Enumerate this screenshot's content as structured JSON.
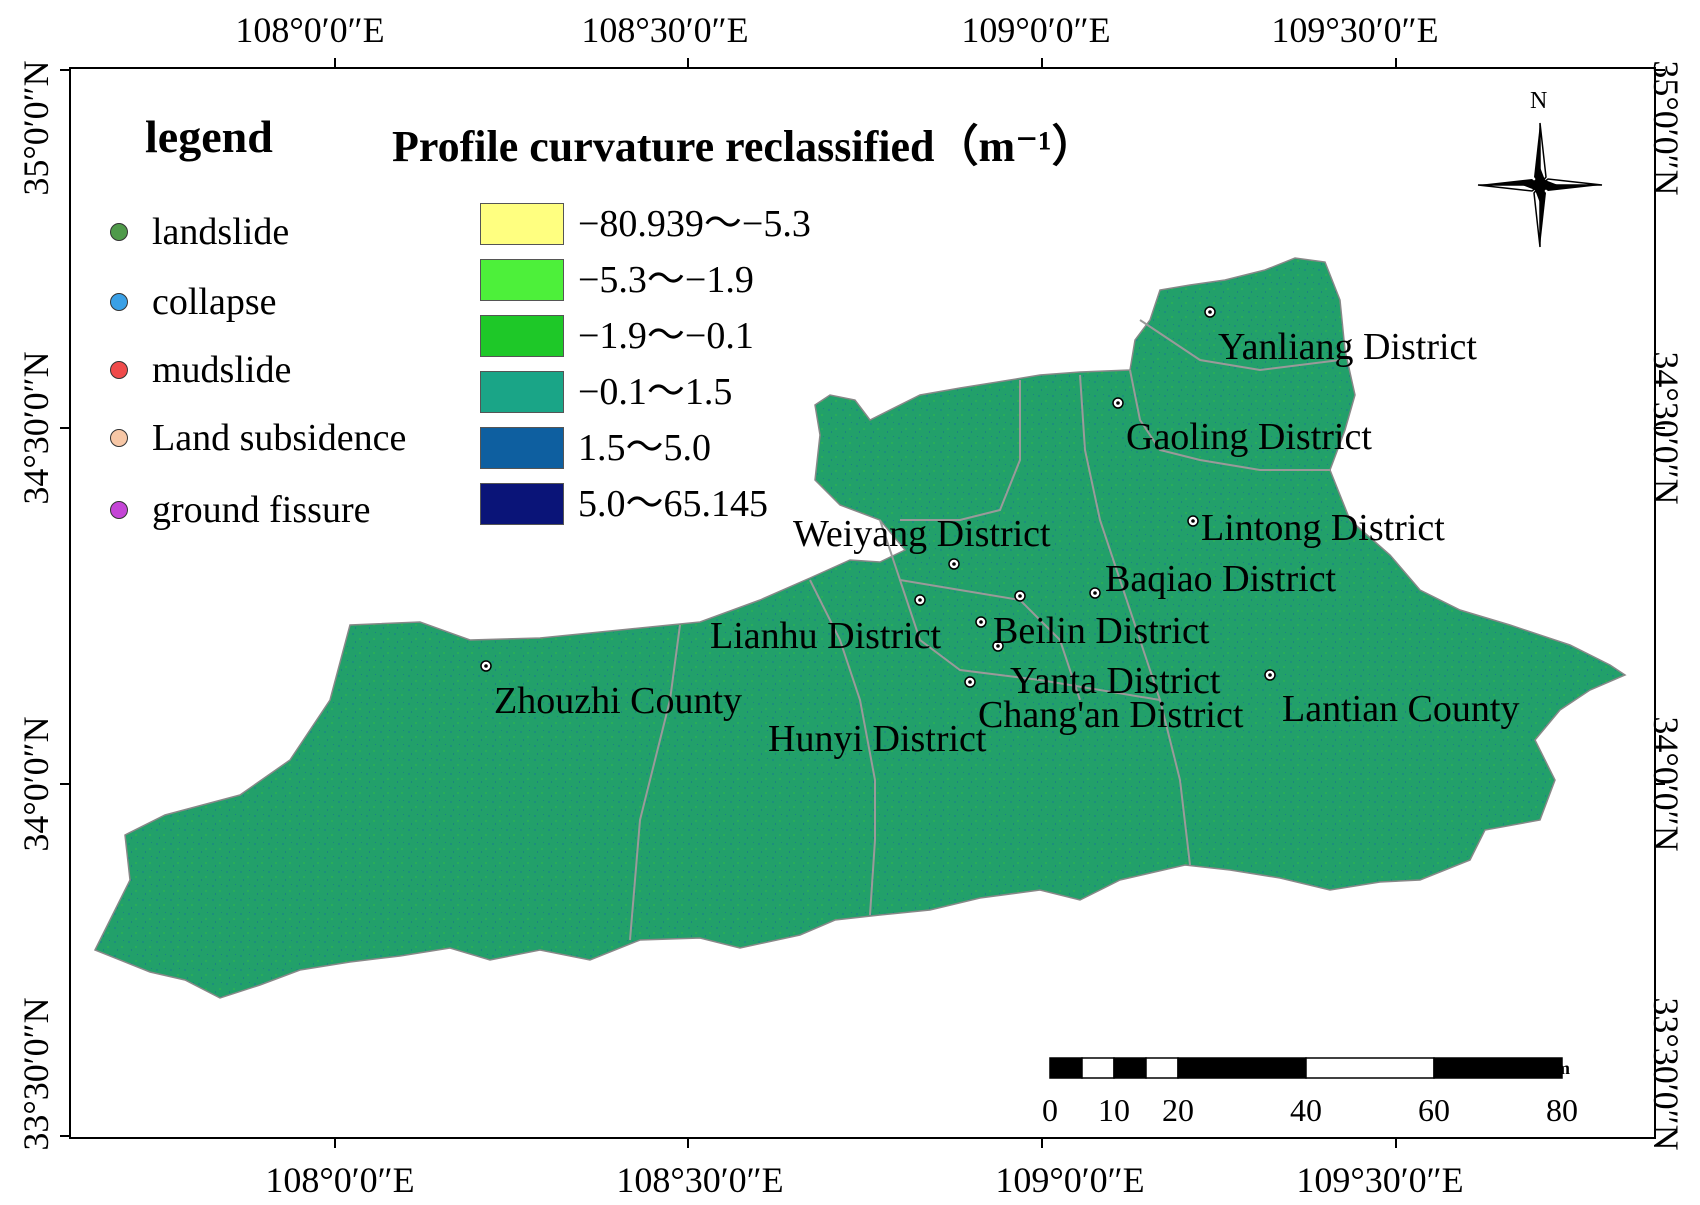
{
  "map": {
    "legend_title": "legend",
    "classification_title": "Profile curvature reclassified（m⁻¹）",
    "north_label": "N",
    "region_color": "#22a06a",
    "boundary_color": "#9a9a9a",
    "hazard_types": [
      {
        "label": "landslide",
        "color": "#4f9a4a"
      },
      {
        "label": "collapse",
        "color": "#3aa0e6"
      },
      {
        "label": "mudslide",
        "color": "#ef4b4b"
      },
      {
        "label": "Land subsidence",
        "color": "#f7c7a6"
      },
      {
        "label": "ground fissure",
        "color": "#c445d6"
      }
    ],
    "curvature_classes": [
      {
        "label": "−80.939～−5.3",
        "color": "#ffff80"
      },
      {
        "label": "−5.3～−1.9",
        "color": "#4df03a"
      },
      {
        "label": "−1.9～−0.1",
        "color": "#1ec828"
      },
      {
        "label": "−0.1～1.5",
        "color": "#1aa587"
      },
      {
        "label": "1.5～5.0",
        "color": "#0e5fa0"
      },
      {
        "label": "5.0～65.145",
        "color": "#0a1478"
      }
    ],
    "graticule": {
      "top": [
        "108°0′0″E",
        "108°30′0″E",
        "109°0′0″E",
        "109°30′0″E"
      ],
      "bottom": [
        "108°0′0″E",
        "108°30′0″E",
        "109°0′0″E",
        "109°30′0″E"
      ],
      "left": [
        "35°0′0″N",
        "34°30′0″N",
        "34°0′0″N",
        "33°30′0″N"
      ],
      "right": [
        "35°0′0″N",
        "34°30′0″N",
        "34°0′0″N",
        "33°30′0″N"
      ]
    },
    "districts": [
      {
        "label": "Yanliang District"
      },
      {
        "label": "Gaoling District"
      },
      {
        "label": "Lintong District"
      },
      {
        "label": "Weiyang District"
      },
      {
        "label": "Baqiao District"
      },
      {
        "label": "Lianhu District"
      },
      {
        "label": "Beilin District"
      },
      {
        "label": "Yanta District"
      },
      {
        "label": "Zhouzhi County"
      },
      {
        "label": "Chang'an District"
      },
      {
        "label": "Lantian County"
      },
      {
        "label": "Hunyi District"
      }
    ],
    "scale_bar": {
      "unit": "km",
      "labels": [
        "0",
        "10",
        "20",
        "40",
        "60",
        "80"
      ]
    }
  }
}
